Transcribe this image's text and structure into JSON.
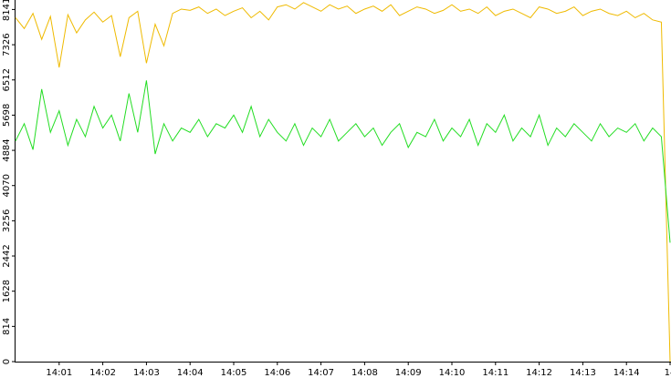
{
  "chart_data": {
    "type": "line",
    "x": [
      0,
      0.2,
      0.4,
      0.6,
      0.8,
      1,
      1.2,
      1.4,
      1.6,
      1.8,
      2,
      2.2,
      2.4,
      2.6,
      2.8,
      3,
      3.2,
      3.4,
      3.6,
      3.8,
      4,
      4.2,
      4.4,
      4.6,
      4.8,
      5,
      5.2,
      5.4,
      5.6,
      5.8,
      6,
      6.2,
      6.4,
      6.6,
      6.8,
      7,
      7.2,
      7.4,
      7.6,
      7.8,
      8,
      8.2,
      8.4,
      8.6,
      8.8,
      9,
      9.2,
      9.4,
      9.6,
      9.8,
      10,
      10.2,
      10.4,
      10.6,
      10.8,
      11,
      11.2,
      11.4,
      11.6,
      11.8,
      12,
      12.2,
      12.4,
      12.6,
      12.8,
      13,
      13.2,
      13.4,
      13.6,
      13.8,
      14,
      14.2,
      14.4,
      14.6,
      14.8,
      15
    ],
    "series": [
      {
        "color": "#efba00",
        "values": [
          7950,
          7700,
          8050,
          7450,
          7980,
          6800,
          8020,
          7600,
          7900,
          8080,
          7850,
          8000,
          7050,
          7950,
          8100,
          6900,
          7800,
          7300,
          8050,
          8150,
          8120,
          8200,
          8050,
          8150,
          8000,
          8100,
          8180,
          7950,
          8100,
          7900,
          8200,
          8250,
          8150,
          8300,
          8200,
          8100,
          8250,
          8150,
          8220,
          8050,
          8150,
          8220,
          8100,
          8250,
          8000,
          8100,
          8200,
          8150,
          8050,
          8120,
          8250,
          8100,
          8150,
          8050,
          8200,
          8000,
          8100,
          8150,
          8050,
          7950,
          8200,
          8150,
          8050,
          8100,
          8200,
          8000,
          8100,
          8150,
          8050,
          8000,
          8100,
          7950,
          8050,
          7900,
          7850,
          0
        ]
      },
      {
        "color": "#22dd22",
        "values": [
          5100,
          5500,
          4900,
          6300,
          5300,
          5800,
          5000,
          5600,
          5200,
          5900,
          5400,
          5700,
          5100,
          6200,
          5300,
          6500,
          4800,
          5500,
          5100,
          5400,
          5300,
          5600,
          5200,
          5500,
          5400,
          5700,
          5300,
          5900,
          5200,
          5600,
          5300,
          5100,
          5500,
          5000,
          5400,
          5200,
          5600,
          5100,
          5300,
          5500,
          5200,
          5400,
          5000,
          5300,
          5500,
          4950,
          5300,
          5200,
          5600,
          5100,
          5400,
          5200,
          5600,
          5000,
          5500,
          5300,
          5700,
          5100,
          5400,
          5200,
          5700,
          5000,
          5400,
          5200,
          5500,
          5300,
          5100,
          5500,
          5200,
          5400,
          5300,
          5500,
          5100,
          5400,
          5200,
          2750
        ]
      }
    ],
    "xlim": [
      0,
      15
    ],
    "ylim": [
      0,
      8360
    ],
    "xticks": [
      {
        "value": 1,
        "label": "14:01"
      },
      {
        "value": 2,
        "label": "14:02"
      },
      {
        "value": 3,
        "label": "14:03"
      },
      {
        "value": 4,
        "label": "14:04"
      },
      {
        "value": 5,
        "label": "14:05"
      },
      {
        "value": 6,
        "label": "14:06"
      },
      {
        "value": 7,
        "label": "14:07"
      },
      {
        "value": 8,
        "label": "14:08"
      },
      {
        "value": 9,
        "label": "14:09"
      },
      {
        "value": 10,
        "label": "14:10"
      },
      {
        "value": 11,
        "label": "14:11"
      },
      {
        "value": 12,
        "label": "14:12"
      },
      {
        "value": 13,
        "label": "14:13"
      },
      {
        "value": 14,
        "label": "14:14"
      },
      {
        "value": 15,
        "label": "14"
      }
    ],
    "yticks": [
      0,
      814,
      1628,
      2442,
      3256,
      4070,
      4884,
      5698,
      6512,
      7326,
      8141
    ]
  }
}
